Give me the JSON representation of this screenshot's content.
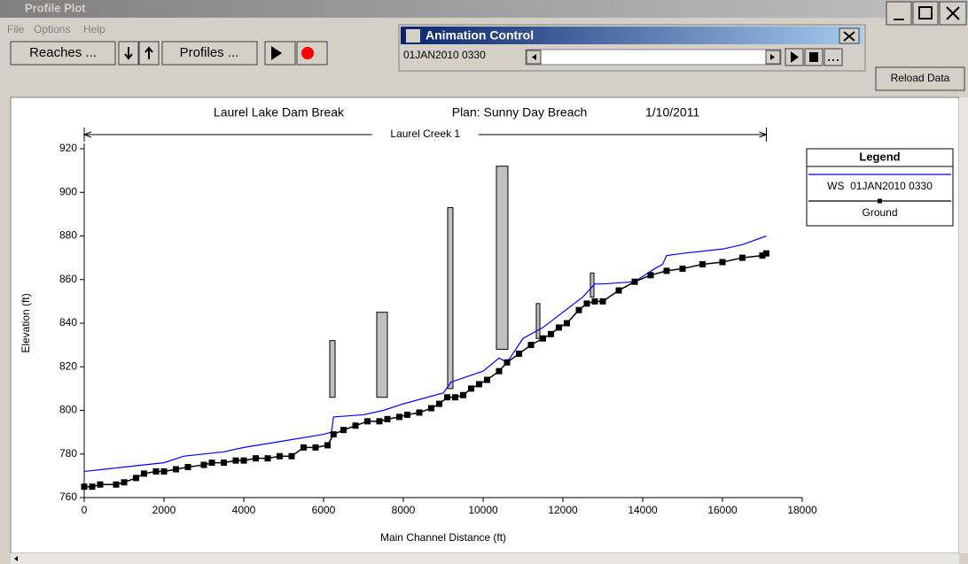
{
  "window": {
    "title": "Profile Plot",
    "menu": [
      "File",
      "Options",
      "Help"
    ],
    "reaches_button": "Reaches ...",
    "profiles_button": "Profiles ...",
    "reload_button": "Reload Data"
  },
  "animation": {
    "title": "Animation Control",
    "time": "01JAN2010 0330"
  },
  "chart_data": {
    "type": "line",
    "title": "Laurel Lake Dam Break",
    "subtitle": "Plan: Sunny Day Breach",
    "date": "1/10/2011",
    "annotation": "Laurel Creek 1",
    "xlabel": "Main Channel Distance (ft)",
    "ylabel": "Elevation (ft)",
    "legend_title": "Legend",
    "legend": "right",
    "xlim": [
      0,
      18000
    ],
    "xticks": [
      0,
      2000,
      4000,
      6000,
      8000,
      10000,
      12000,
      14000,
      16000,
      18000
    ],
    "ylim": [
      760,
      920
    ],
    "yticks": [
      760,
      780,
      800,
      820,
      840,
      860,
      880,
      900,
      920
    ],
    "series": [
      {
        "name": "WS  01JAN2010 0330",
        "color": "#0000ff",
        "x": [
          0,
          1000,
          2000,
          2500,
          3500,
          4000,
          5000,
          6000,
          6200,
          6250,
          7000,
          7500,
          8000,
          9000,
          9200,
          10000,
          10400,
          10600,
          11000,
          11500,
          12000,
          12500,
          12800,
          13000,
          13800,
          14300,
          14500,
          14600,
          15000,
          16000,
          16500,
          17100
        ],
        "values": [
          772,
          774,
          776,
          779,
          781,
          783,
          786,
          789,
          790,
          797,
          798,
          800,
          803,
          808,
          813,
          818,
          824,
          822,
          833,
          838,
          845,
          852,
          858,
          858,
          859,
          865,
          867,
          871,
          872,
          874,
          876,
          880
        ]
      },
      {
        "name": "Ground",
        "color": "#000000",
        "x": [
          0,
          200,
          400,
          800,
          1000,
          1300,
          1500,
          1800,
          2000,
          2300,
          2600,
          3000,
          3200,
          3500,
          3800,
          4000,
          4300,
          4600,
          4900,
          5200,
          5500,
          5800,
          6100,
          6250,
          6500,
          6800,
          7100,
          7400,
          7600,
          7900,
          8100,
          8400,
          8700,
          8900,
          9100,
          9300,
          9500,
          9700,
          9900,
          10100,
          10400,
          10600,
          10900,
          11200,
          11500,
          11700,
          11900,
          12100,
          12400,
          12600,
          12800,
          13000,
          13400,
          13800,
          14200,
          14600,
          15000,
          15500,
          16000,
          16500,
          17000,
          17100
        ],
        "values": [
          765,
          765,
          766,
          766,
          767,
          769,
          771,
          772,
          772,
          773,
          774,
          775,
          776,
          776,
          777,
          777,
          778,
          778,
          779,
          779,
          783,
          783,
          784,
          789,
          791,
          793,
          795,
          795,
          796,
          797,
          798,
          799,
          801,
          803,
          806,
          806,
          807,
          810,
          812,
          814,
          818,
          822,
          826,
          830,
          833,
          835,
          838,
          840,
          846,
          849,
          850,
          850,
          855,
          859,
          862,
          864,
          865,
          867,
          868,
          870,
          871,
          872
        ]
      }
    ],
    "structures": [
      {
        "x": [
          6155,
          6289
        ],
        "low": 806,
        "high": 832
      },
      {
        "x": [
          7333,
          7600
        ],
        "low": 806,
        "high": 845
      },
      {
        "x": [
          9111,
          9244
        ],
        "low": 810,
        "high": 893
      },
      {
        "x": [
          10333,
          10622
        ],
        "low": 828,
        "high": 912
      },
      {
        "x": [
          11333,
          11422
        ],
        "low": 833,
        "high": 849
      },
      {
        "x": [
          12689,
          12778
        ],
        "low": 852,
        "high": 863
      }
    ]
  }
}
